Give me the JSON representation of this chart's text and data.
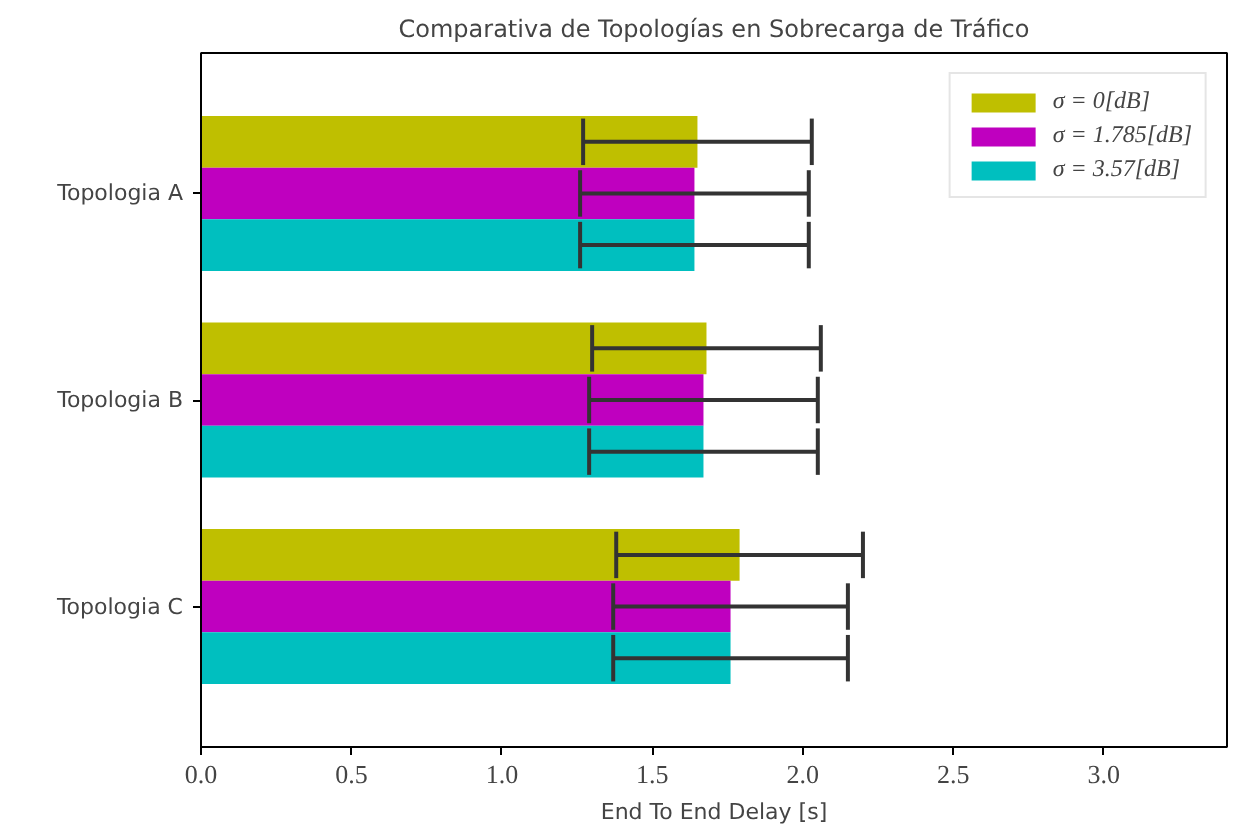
{
  "chart_data": {
    "type": "bar",
    "orientation": "horizontal",
    "title": "Comparativa de Topologías en Sobrecarga de Tráfico",
    "xlabel": "End To End Delay [s]",
    "categories": [
      "Topologia A",
      "Topologia B",
      "Topologia C"
    ],
    "series": [
      {
        "name": "σ = 0[dB]",
        "color": "#bfbf00",
        "values": [
          1.65,
          1.68,
          1.79
        ],
        "errors": [
          0.38,
          0.38,
          0.41
        ]
      },
      {
        "name": "σ = 1.785[dB]",
        "color": "#bf00bf",
        "values": [
          1.64,
          1.67,
          1.76
        ],
        "errors": [
          0.38,
          0.38,
          0.39
        ]
      },
      {
        "name": "σ = 3.57[dB]",
        "color": "#00bfbf",
        "values": [
          1.64,
          1.67,
          1.76
        ],
        "errors": [
          0.38,
          0.38,
          0.39
        ]
      }
    ],
    "xlim": [
      0,
      3.41
    ],
    "xticks": [
      {
        "value": 0,
        "label": "0.0"
      },
      0.5,
      {
        "value": 1,
        "label": "1.0"
      },
      1.5,
      {
        "value": 2,
        "label": "2.0"
      },
      2.5,
      {
        "value": 3,
        "label": "3.0"
      }
    ],
    "grid": false,
    "legend": "top right"
  }
}
